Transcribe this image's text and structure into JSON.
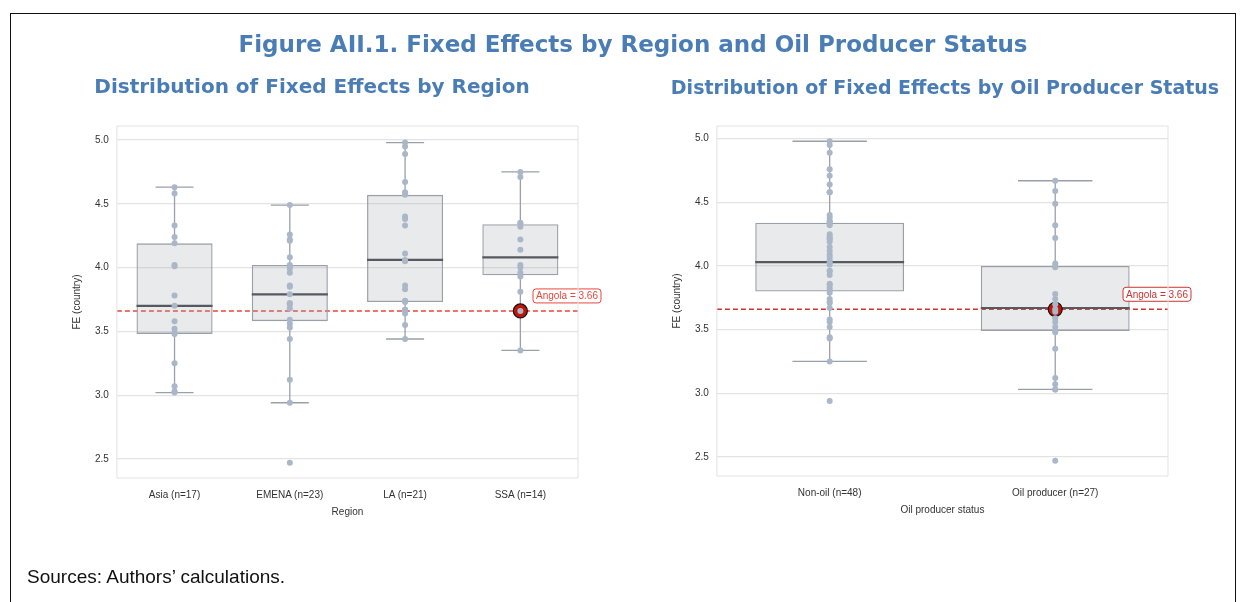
{
  "chart_data": [
    {
      "type": "box",
      "title": "Figure AII.1. Fixed Effects by Region and Oil Producer Status",
      "subtitle": "Distribution of Fixed Effects by Region",
      "xlabel": "Region",
      "ylabel": "FE (country)",
      "categories": [
        "Asia (n=17)",
        "EMENA (n=23)",
        "LA (n=21)",
        "SSA (n=14)"
      ],
      "ylim": [
        2.35,
        5.11
      ],
      "yticks": [
        2.5,
        {
          "value": 3,
          "label": "3.0"
        },
        3.5,
        {
          "value": 4,
          "label": "4.0"
        },
        4.5,
        {
          "value": 5,
          "label": "5.0"
        }
      ],
      "grid": "y",
      "legend": false,
      "marker": "circle",
      "series": [
        {
          "color": "#9aa0a8",
          "boxes": [
            {
              "low": 3.02,
              "q1": 3.48,
              "median": 3.7,
              "q3": 4.19,
              "high": 4.63
            },
            {
              "low": 2.94,
              "q1": 3.58,
              "median": 3.79,
              "q3": 4.02,
              "high": 4.49
            },
            {
              "low": 3.44,
              "q1": 3.73,
              "median": 4.06,
              "q3": 4.57,
              "high": 4.98
            },
            {
              "low": 3.35,
              "q1": 3.94,
              "median": 4.08,
              "q3": 4.34,
              "high": 4.75
            }
          ]
        },
        {
          "type": "scatter",
          "color": "#aab7c8",
          "x": [
            "Asia (n=17)",
            "Asia (n=17)",
            "Asia (n=17)",
            "Asia (n=17)",
            "Asia (n=17)",
            "Asia (n=17)",
            "Asia (n=17)",
            "Asia (n=17)",
            "Asia (n=17)",
            "Asia (n=17)",
            "Asia (n=17)",
            "Asia (n=17)",
            "Asia (n=17)",
            "Asia (n=17)",
            "Asia (n=17)",
            "Asia (n=17)",
            "Asia (n=17)",
            "EMENA (n=23)",
            "EMENA (n=23)",
            "EMENA (n=23)",
            "EMENA (n=23)",
            "EMENA (n=23)",
            "EMENA (n=23)",
            "EMENA (n=23)",
            "EMENA (n=23)",
            "EMENA (n=23)",
            "EMENA (n=23)",
            "EMENA (n=23)",
            "EMENA (n=23)",
            "EMENA (n=23)",
            "EMENA (n=23)",
            "EMENA (n=23)",
            "EMENA (n=23)",
            "EMENA (n=23)",
            "EMENA (n=23)",
            "EMENA (n=23)",
            "EMENA (n=23)",
            "EMENA (n=23)",
            "EMENA (n=23)",
            "EMENA (n=23)",
            "LA (n=21)",
            "LA (n=21)",
            "LA (n=21)",
            "LA (n=21)",
            "LA (n=21)",
            "LA (n=21)",
            "LA (n=21)",
            "LA (n=21)",
            "LA (n=21)",
            "LA (n=21)",
            "LA (n=21)",
            "LA (n=21)",
            "LA (n=21)",
            "LA (n=21)",
            "LA (n=21)",
            "LA (n=21)",
            "LA (n=21)",
            "LA (n=21)",
            "LA (n=21)",
            "LA (n=21)",
            "LA (n=21)",
            "SSA (n=14)",
            "SSA (n=14)",
            "SSA (n=14)",
            "SSA (n=14)",
            "SSA (n=14)",
            "SSA (n=14)",
            "SSA (n=14)",
            "SSA (n=14)",
            "SSA (n=14)",
            "SSA (n=14)",
            "SSA (n=14)",
            "SSA (n=14)",
            "SSA (n=14)",
            "SSA (n=14)"
          ],
          "values": [
            4.63,
            4.58,
            4.33,
            4.24,
            4.19,
            4.02,
            4.01,
            3.78,
            3.7,
            3.58,
            3.52,
            3.49,
            3.48,
            3.25,
            3.07,
            3.03,
            3.02,
            4.49,
            4.26,
            4.22,
            4.21,
            4.08,
            4.02,
            4.01,
            3.99,
            3.96,
            3.86,
            3.85,
            3.79,
            3.72,
            3.72,
            3.71,
            3.68,
            3.59,
            3.56,
            3.53,
            3.44,
            3.12,
            2.94,
            2.47,
            4.98,
            4.95,
            4.89,
            4.67,
            4.59,
            4.57,
            4.4,
            4.38,
            4.33,
            4.11,
            4.06,
            4.05,
            3.86,
            3.83,
            3.74,
            3.73,
            3.67,
            3.67,
            3.64,
            3.55,
            3.44,
            4.75,
            4.71,
            4.35,
            4.35,
            4.32,
            4.22,
            4.14,
            4.02,
            4.0,
            3.96,
            3.93,
            3.81,
            3.66,
            3.35
          ]
        },
        {
          "type": "scatter",
          "color": "#c0140a",
          "x": [
            "SSA (n=14)"
          ],
          "values": [
            3.66
          ]
        }
      ],
      "ref_lines": [
        {
          "axis": "y",
          "value": 3.66,
          "label": "Angola = 3.66",
          "color": "#e8473d",
          "line_style": "dashed"
        }
      ],
      "annotations": [
        "Sources: Authors’ calculations."
      ]
    },
    {
      "type": "box",
      "title": "Distribution of Fixed Effects by Oil Producer Status",
      "xlabel": "Oil producer status",
      "ylabel": "FE (country)",
      "categories": [
        "Non-oil (n=48)",
        "Oil producer (n=27)"
      ],
      "ylim": [
        2.35,
        5.1
      ],
      "yticks": [
        2.5,
        {
          "value": 3,
          "label": "3.0"
        },
        3.5,
        {
          "value": 4,
          "label": "4.0"
        },
        4.5,
        {
          "value": 5,
          "label": "5.0"
        }
      ],
      "grid": "y",
      "legend": false,
      "marker": "circle",
      "series": [
        {
          "color": "#9aa0a8",
          "boxes": [
            {
              "low": 3.25,
              "q1": 3.8,
              "median": 4.03,
              "q3": 4.34,
              "high": 4.98
            },
            {
              "low": 3.03,
              "q1": 3.49,
              "median": 3.67,
              "q3": 4.0,
              "high": 4.67
            }
          ]
        },
        {
          "type": "scatter",
          "color": "#aab7c8",
          "x": [
            "Non-oil (n=48)",
            "Non-oil (n=48)",
            "Non-oil (n=48)",
            "Non-oil (n=48)",
            "Non-oil (n=48)",
            "Non-oil (n=48)",
            "Non-oil (n=48)",
            "Non-oil (n=48)",
            "Non-oil (n=48)",
            "Non-oil (n=48)",
            "Non-oil (n=48)",
            "Non-oil (n=48)",
            "Non-oil (n=48)",
            "Non-oil (n=48)",
            "Non-oil (n=48)",
            "Non-oil (n=48)",
            "Non-oil (n=48)",
            "Non-oil (n=48)",
            "Non-oil (n=48)",
            "Non-oil (n=48)",
            "Non-oil (n=48)",
            "Non-oil (n=48)",
            "Non-oil (n=48)",
            "Non-oil (n=48)",
            "Non-oil (n=48)",
            "Non-oil (n=48)",
            "Non-oil (n=48)",
            "Non-oil (n=48)",
            "Non-oil (n=48)",
            "Non-oil (n=48)",
            "Non-oil (n=48)",
            "Non-oil (n=48)",
            "Non-oil (n=48)",
            "Non-oil (n=48)",
            "Non-oil (n=48)",
            "Non-oil (n=48)",
            "Non-oil (n=48)",
            "Non-oil (n=48)",
            "Non-oil (n=48)",
            "Non-oil (n=48)",
            "Non-oil (n=48)",
            "Non-oil (n=48)",
            "Non-oil (n=48)",
            "Non-oil (n=48)",
            "Non-oil (n=48)",
            "Oil producer (n=27)",
            "Oil producer (n=27)",
            "Oil producer (n=27)",
            "Oil producer (n=27)",
            "Oil producer (n=27)",
            "Oil producer (n=27)",
            "Oil producer (n=27)",
            "Oil producer (n=27)",
            "Oil producer (n=27)",
            "Oil producer (n=27)",
            "Oil producer (n=27)",
            "Oil producer (n=27)",
            "Oil producer (n=27)",
            "Oil producer (n=27)",
            "Oil producer (n=27)",
            "Oil producer (n=27)",
            "Oil producer (n=27)",
            "Oil producer (n=27)",
            "Oil producer (n=27)",
            "Oil producer (n=27)",
            "Oil producer (n=27)",
            "Oil producer (n=27)",
            "Oil producer (n=27)",
            "Oil producer (n=27)"
          ],
          "values": [
            4.98,
            4.95,
            4.89,
            4.76,
            4.71,
            4.64,
            4.58,
            4.58,
            4.4,
            4.38,
            4.35,
            4.35,
            4.33,
            4.32,
            4.25,
            4.23,
            4.22,
            4.21,
            4.19,
            4.15,
            4.12,
            4.09,
            4.07,
            4.05,
            4.03,
            4.01,
            3.96,
            3.96,
            3.93,
            3.86,
            3.85,
            3.83,
            3.81,
            3.79,
            3.74,
            3.72,
            3.71,
            3.67,
            3.58,
            3.56,
            3.52,
            3.44,
            3.43,
            3.25,
            2.94,
            4.67,
            4.59,
            4.49,
            4.32,
            4.22,
            4.02,
            4.0,
            3.99,
            3.78,
            3.74,
            3.7,
            3.66,
            3.64,
            3.59,
            3.56,
            3.52,
            3.49,
            3.48,
            3.35,
            3.12,
            3.07,
            3.03,
            3.03,
            2.47
          ]
        },
        {
          "type": "scatter",
          "color": "#c0140a",
          "x": [
            "Oil producer (n=27)"
          ],
          "values": [
            3.66
          ]
        }
      ],
      "ref_lines": [
        {
          "axis": "y",
          "value": 3.66,
          "label": "Angola = 3.66",
          "color": "#cc3333",
          "line_style": "dashed"
        }
      ]
    }
  ]
}
